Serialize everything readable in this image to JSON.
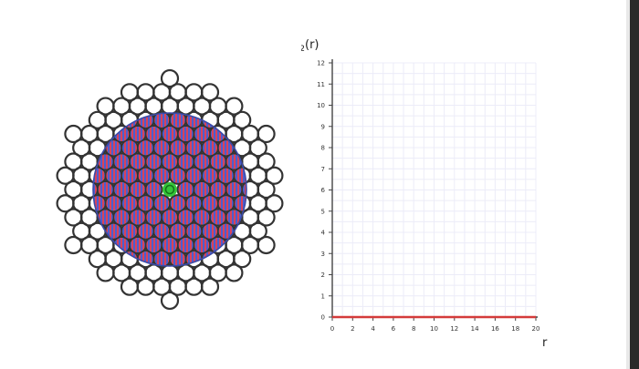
{
  "colors": {
    "particle_outline": "#333333",
    "shell_circle": "#3b4aa8",
    "stripe_red": "#d9435a",
    "stripe_blue": "#4a5fd0",
    "center_particle": "#35c63a",
    "center_ring": "#15731b",
    "grid": "#ececf8",
    "axis": "#444444",
    "curve": "#d43a3a"
  },
  "chart_data": {
    "type": "line",
    "title": "",
    "ylabel": "g₂(r)",
    "xlabel": "r",
    "xlim": [
      0,
      20
    ],
    "ylim": [
      0,
      12
    ],
    "x_ticks": [
      "0",
      "2",
      "4",
      "6",
      "8",
      "10",
      "12",
      "14",
      "16",
      "18",
      "20"
    ],
    "y_ticks": [
      "0",
      "1",
      "2",
      "3",
      "4",
      "5",
      "6",
      "7",
      "8",
      "9",
      "10",
      "11",
      "12"
    ],
    "grid": true,
    "series": [
      {
        "x": [
          0,
          20
        ],
        "y": [
          0,
          0
        ]
      }
    ]
  },
  "ylabel_parts": {
    "base": "g",
    "sub": "2",
    "rest": "(r)"
  }
}
